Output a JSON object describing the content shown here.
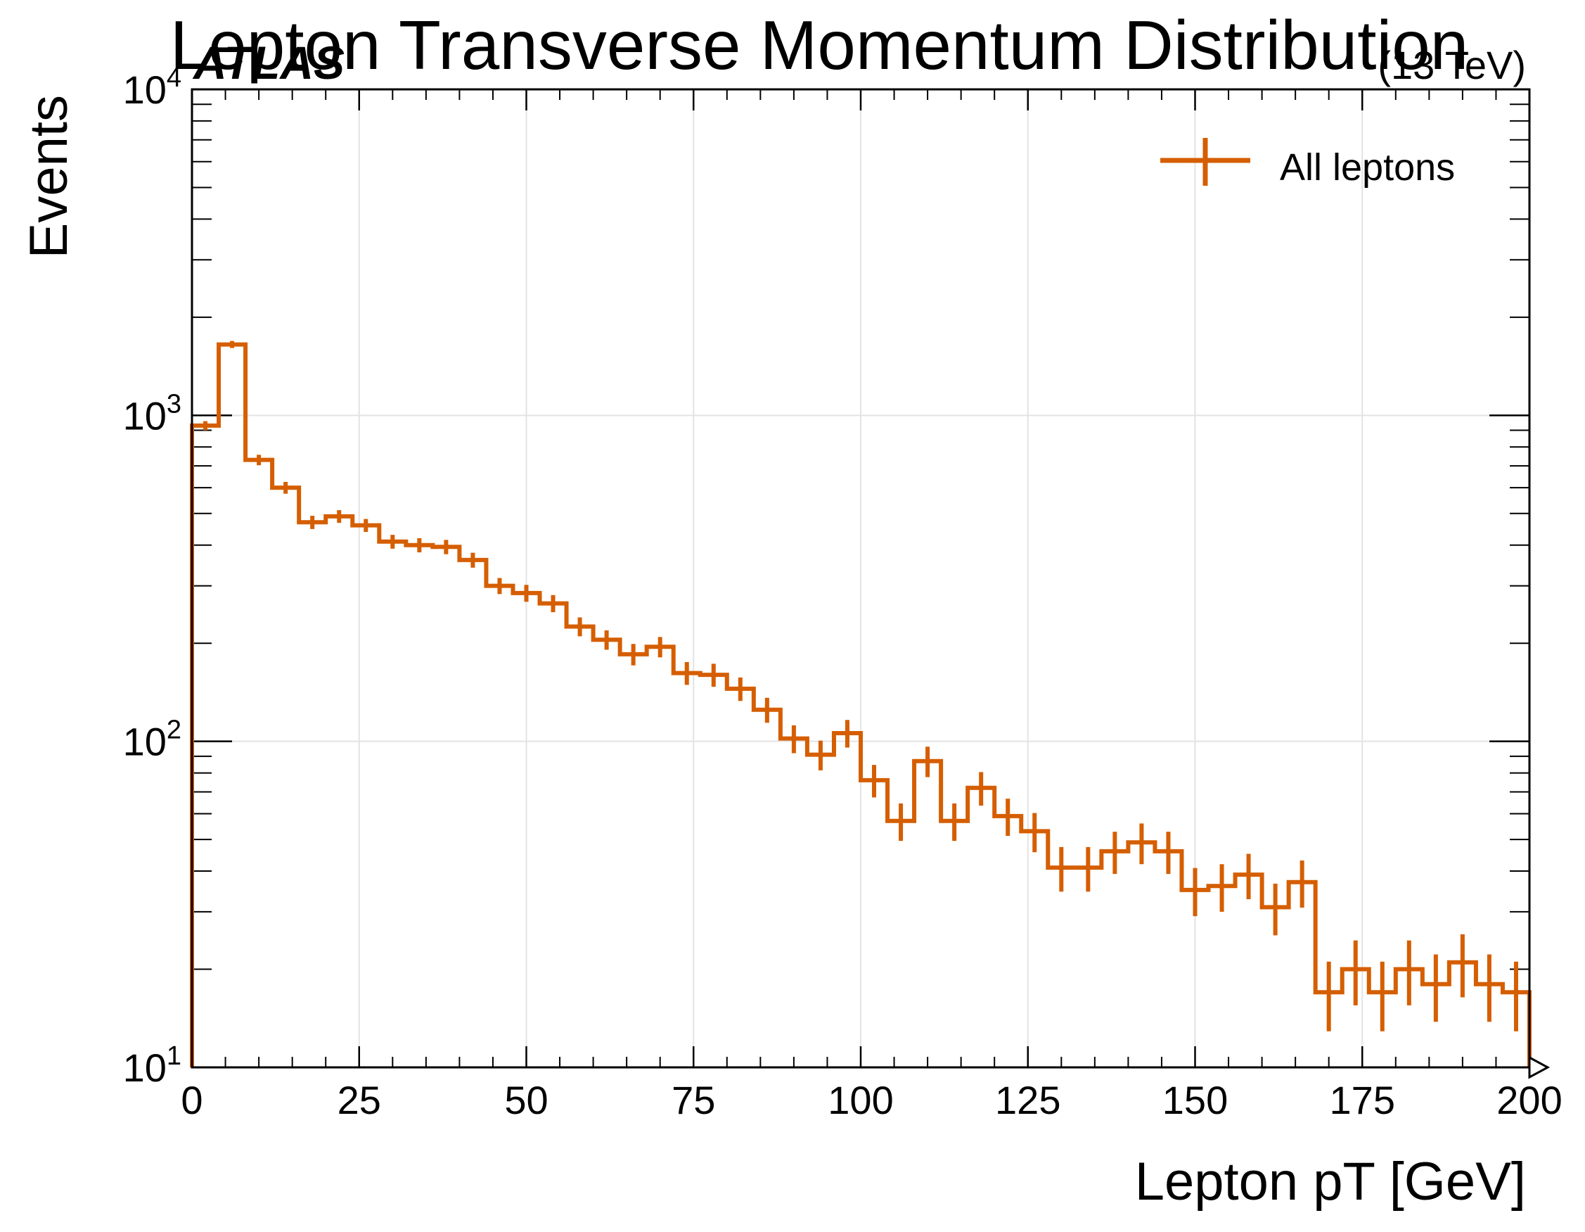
{
  "chart_data": {
    "type": "histogram",
    "title": "Lepton Transverse Momentum Distribution",
    "experiment_label": "ATLAS",
    "energy_label": "(13 TeV)",
    "xlabel": "Lepton pT [GeV]",
    "ylabel": "Events",
    "xlim": [
      0,
      200
    ],
    "ylim": [
      10,
      10000
    ],
    "yscale": "log",
    "grid": true,
    "legend_position": "top-right",
    "x_ticks": [
      "0",
      "25",
      "50",
      "75",
      "100",
      "125",
      "150",
      "175",
      "200"
    ],
    "y_ticks": [
      {
        "base": "10",
        "exp": "1"
      },
      {
        "base": "10",
        "exp": "2"
      },
      {
        "base": "10",
        "exp": "3"
      },
      {
        "base": "10",
        "exp": "4"
      }
    ],
    "colors": {
      "series": "#d55e00",
      "grid": "#e3e3e3",
      "axis": "#000000"
    },
    "series": [
      {
        "name": "All leptons",
        "bin_width": 4,
        "x_start": 0,
        "values": [
          930,
          1650,
          730,
          600,
          470,
          490,
          460,
          410,
          400,
          395,
          360,
          300,
          285,
          265,
          225,
          205,
          185,
          195,
          162,
          160,
          145,
          125,
          102,
          91,
          106,
          76,
          57,
          87,
          57,
          72,
          59,
          53,
          41,
          41,
          46,
          49,
          46,
          35,
          36,
          39,
          31,
          37,
          17,
          20,
          17,
          20,
          18,
          21,
          18,
          17
        ],
        "errors": [
          30,
          41,
          27,
          25,
          22,
          22,
          21,
          20,
          20,
          20,
          19,
          17,
          17,
          16,
          15,
          14,
          14,
          14,
          13,
          13,
          12,
          11,
          10,
          9.5,
          10.3,
          8.7,
          7.5,
          9.3,
          7.5,
          8.5,
          7.7,
          7.3,
          6.4,
          6.4,
          6.8,
          7.0,
          6.8,
          5.9,
          6.0,
          6.2,
          5.6,
          6.1,
          4.1,
          4.5,
          4.1,
          4.5,
          4.2,
          4.6,
          4.2,
          4.1
        ]
      }
    ]
  }
}
